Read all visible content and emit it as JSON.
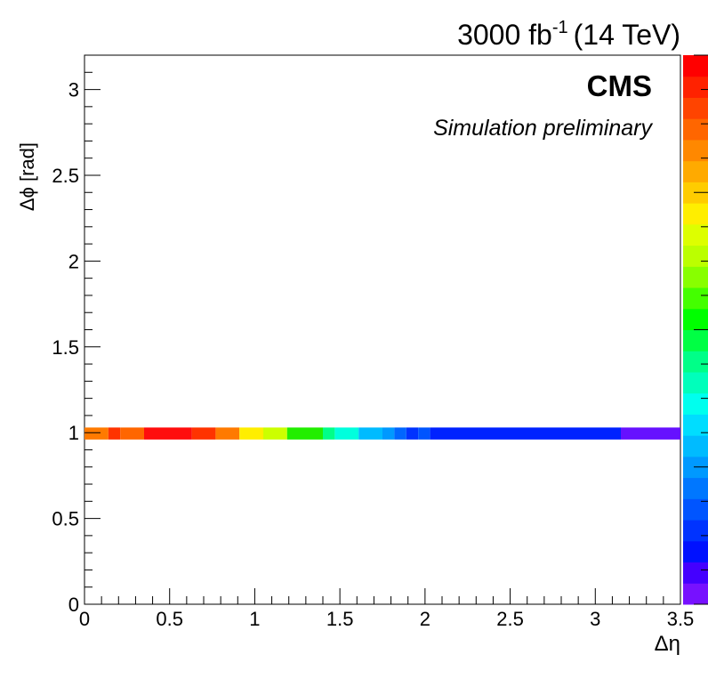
{
  "header": {
    "lumi": "3000 fb",
    "lumi_exp": "-1",
    "energy": "(14 TeV)"
  },
  "labels": {
    "cms": "CMS",
    "simulation": "Simulation preliminary"
  },
  "chart_data": {
    "type": "heatmap",
    "xlabel": "Δη",
    "ylabel": "Δϕ [rad]",
    "xlim": [
      0,
      3.5
    ],
    "ylim": [
      0,
      3.2
    ],
    "xticks": [
      "0",
      "0.5",
      "1",
      "1.5",
      "2",
      "2.5",
      "3",
      "3.5"
    ],
    "yticks": [
      "0",
      "0.5",
      "1",
      "1.5",
      "2",
      "2.5",
      "3"
    ],
    "cells": [
      {
        "x0": 0.0,
        "x1": 0.14,
        "y0": 0.96,
        "y1": 1.03,
        "color": "#ff7a00"
      },
      {
        "x0": 0.14,
        "x1": 0.21,
        "y0": 0.96,
        "y1": 1.03,
        "color": "#ff3300"
      },
      {
        "x0": 0.21,
        "x1": 0.35,
        "y0": 0.96,
        "y1": 1.03,
        "color": "#ff6600"
      },
      {
        "x0": 0.35,
        "x1": 0.63,
        "y0": 0.96,
        "y1": 1.03,
        "color": "#ff0d0d"
      },
      {
        "x0": 0.63,
        "x1": 0.77,
        "y0": 0.96,
        "y1": 1.03,
        "color": "#ff3300"
      },
      {
        "x0": 0.77,
        "x1": 0.91,
        "y0": 0.96,
        "y1": 1.03,
        "color": "#ff7a00"
      },
      {
        "x0": 0.91,
        "x1": 1.05,
        "y0": 0.96,
        "y1": 1.03,
        "color": "#ffee00"
      },
      {
        "x0": 1.05,
        "x1": 1.19,
        "y0": 0.96,
        "y1": 1.03,
        "color": "#ccff00"
      },
      {
        "x0": 1.19,
        "x1": 1.4,
        "y0": 0.96,
        "y1": 1.03,
        "color": "#22ee00"
      },
      {
        "x0": 1.4,
        "x1": 1.47,
        "y0": 0.96,
        "y1": 1.03,
        "color": "#00ff88"
      },
      {
        "x0": 1.47,
        "x1": 1.61,
        "y0": 0.96,
        "y1": 1.03,
        "color": "#00ffdd"
      },
      {
        "x0": 1.61,
        "x1": 1.75,
        "y0": 0.96,
        "y1": 1.03,
        "color": "#00bbff"
      },
      {
        "x0": 1.75,
        "x1": 1.82,
        "y0": 0.96,
        "y1": 1.03,
        "color": "#0099ff"
      },
      {
        "x0": 1.82,
        "x1": 1.89,
        "y0": 0.96,
        "y1": 1.03,
        "color": "#0066ff"
      },
      {
        "x0": 1.89,
        "x1": 1.96,
        "y0": 0.96,
        "y1": 1.03,
        "color": "#0033ff"
      },
      {
        "x0": 1.96,
        "x1": 2.03,
        "y0": 0.96,
        "y1": 1.03,
        "color": "#0055ff"
      },
      {
        "x0": 2.03,
        "x1": 3.15,
        "y0": 0.96,
        "y1": 1.03,
        "color": "#0022ff"
      },
      {
        "x0": 3.15,
        "x1": 3.5,
        "y0": 0.96,
        "y1": 1.03,
        "color": "#6611ff"
      }
    ],
    "colorscale": [
      "#7711ff",
      "#4400ff",
      "#0011ff",
      "#0033ff",
      "#0055ff",
      "#0077ff",
      "#0099ff",
      "#00bbff",
      "#00ddff",
      "#00ffee",
      "#00ffbb",
      "#00ff88",
      "#00ff44",
      "#00ff00",
      "#44ff00",
      "#88ff00",
      "#bbff00",
      "#ddff00",
      "#ffee00",
      "#ffcc00",
      "#ffaa00",
      "#ff8800",
      "#ff6600",
      "#ff4400",
      "#ff2200",
      "#ff0000"
    ],
    "grid": false
  }
}
